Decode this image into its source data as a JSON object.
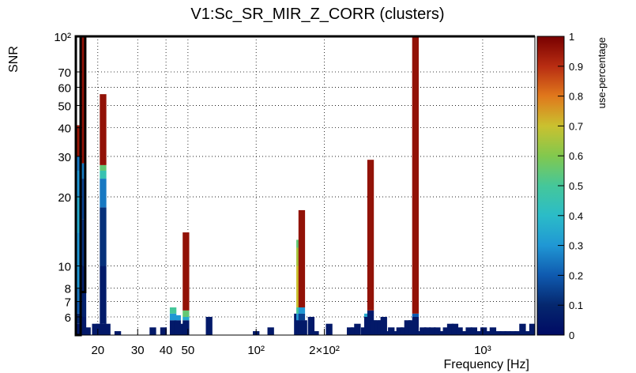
{
  "chart_data": {
    "type": "heatmap",
    "title": "V1:Sc_SR_MIR_Z_CORR (clusters)",
    "xlabel": "Frequency [Hz]",
    "ylabel": "SNR",
    "colorbar_label": "use-percentage",
    "x_scale": "log",
    "y_scale": "log",
    "xlim": [
      16,
      1700
    ],
    "ylim": [
      5,
      100
    ],
    "zlim": [
      0,
      1
    ],
    "grid": true,
    "x_ticks": [
      {
        "value": 20,
        "label": "20"
      },
      {
        "value": 30,
        "label": "30"
      },
      {
        "value": 40,
        "label": "40"
      },
      {
        "value": 50,
        "label": "50"
      },
      {
        "value": 100,
        "label": "10²"
      },
      {
        "value": 200,
        "label": "2×10²"
      },
      {
        "value": 1000,
        "label": "10³"
      }
    ],
    "y_ticks": [
      {
        "value": 6,
        "label": "6"
      },
      {
        "value": 7,
        "label": "7"
      },
      {
        "value": 8,
        "label": "8"
      },
      {
        "value": 10,
        "label": "10"
      },
      {
        "value": 20,
        "label": "20"
      },
      {
        "value": 30,
        "label": "30"
      },
      {
        "value": 40,
        "label": "40"
      },
      {
        "value": 50,
        "label": "50"
      },
      {
        "value": 60,
        "label": "60"
      },
      {
        "value": 70,
        "label": "70"
      },
      {
        "value": 100,
        "label": "10²"
      }
    ],
    "colorbar_ticks": [
      {
        "value": 0,
        "label": "0"
      },
      {
        "value": 0.1,
        "label": "0.1"
      },
      {
        "value": 0.2,
        "label": "0.2"
      },
      {
        "value": 0.3,
        "label": "0.3"
      },
      {
        "value": 0.4,
        "label": "0.4"
      },
      {
        "value": 0.5,
        "label": "0.5"
      },
      {
        "value": 0.6,
        "label": "0.6"
      },
      {
        "value": 0.7,
        "label": "0.7"
      },
      {
        "value": 0.8,
        "label": "0.8"
      },
      {
        "value": 0.9,
        "label": "0.9"
      },
      {
        "value": 1,
        "label": "1"
      }
    ],
    "highlight_boxes": [
      {
        "x": [
          16.0,
          16.8
        ],
        "y": [
          5,
          100
        ]
      },
      {
        "x": [
          16.8,
          17.6
        ],
        "y": [
          7.7,
          100
        ]
      }
    ],
    "columns": [
      {
        "f": 16.4,
        "segs": [
          [
            5,
            5.6,
            0.05
          ],
          [
            5.6,
            6.2,
            0.1
          ],
          [
            6.2,
            7,
            0.2
          ],
          [
            7,
            8,
            0.25
          ],
          [
            8,
            10,
            0.3
          ],
          [
            10,
            14,
            0.3
          ],
          [
            14,
            20,
            0.35
          ],
          [
            20,
            26,
            0.3
          ],
          [
            26,
            30,
            0.25
          ],
          [
            30,
            41,
            0.95
          ]
        ]
      },
      {
        "f": 17.2,
        "segs": [
          [
            5,
            6,
            0.05
          ],
          [
            6,
            10,
            0.08
          ],
          [
            10,
            16,
            0.12
          ],
          [
            16,
            24,
            0.15
          ],
          [
            24,
            28,
            0.25
          ],
          [
            28,
            100,
            0.96
          ]
        ]
      },
      {
        "f": 18.0,
        "segs": [
          [
            5,
            5.4,
            0.05
          ]
        ]
      },
      {
        "f": 19.5,
        "segs": [
          [
            5,
            5.6,
            0.05
          ]
        ]
      },
      {
        "f": 20.3,
        "segs": [
          [
            5,
            5.6,
            0.05
          ]
        ]
      },
      {
        "f": 21.1,
        "segs": [
          [
            5,
            5.6,
            0.05
          ],
          [
            5.6,
            10,
            0.06
          ],
          [
            10,
            18,
            0.12
          ],
          [
            18,
            24,
            0.25
          ],
          [
            24,
            26,
            0.45
          ],
          [
            26,
            27.5,
            0.55
          ],
          [
            27.5,
            56,
            0.96
          ]
        ]
      },
      {
        "f": 22.0,
        "segs": [
          [
            5,
            5.6,
            0.05
          ]
        ]
      },
      {
        "f": 24.5,
        "segs": [
          [
            5,
            5.2,
            0.05
          ]
        ]
      },
      {
        "f": 35.0,
        "segs": [
          [
            5,
            5.4,
            0.05
          ]
        ]
      },
      {
        "f": 39.0,
        "segs": [
          [
            5,
            5.4,
            0.05
          ]
        ]
      },
      {
        "f": 43.0,
        "segs": [
          [
            5,
            5.8,
            0.05
          ],
          [
            5.8,
            6.2,
            0.3
          ],
          [
            6.2,
            6.6,
            0.5
          ]
        ]
      },
      {
        "f": 45.0,
        "segs": [
          [
            5,
            5.8,
            0.05
          ],
          [
            5.8,
            6.1,
            0.3
          ]
        ]
      },
      {
        "f": 47.0,
        "segs": [
          [
            5,
            5.6,
            0.05
          ]
        ]
      },
      {
        "f": 49.0,
        "segs": [
          [
            5,
            5.8,
            0.05
          ],
          [
            5.8,
            6,
            0.35
          ],
          [
            6,
            6.4,
            0.55
          ],
          [
            6.4,
            14,
            0.96
          ]
        ]
      },
      {
        "f": 62.0,
        "segs": [
          [
            5,
            6,
            0.05
          ]
        ]
      },
      {
        "f": 100.0,
        "segs": [
          [
            5,
            5.2,
            0.05
          ]
        ]
      },
      {
        "f": 116.0,
        "segs": [
          [
            5,
            5.4,
            0.05
          ]
        ]
      },
      {
        "f": 152.0,
        "segs": [
          [
            5,
            6.2,
            0.05
          ]
        ]
      },
      {
        "f": 155.5,
        "segs": [
          [
            5,
            5.8,
            0.05
          ],
          [
            5.8,
            6.2,
            0.3
          ],
          [
            6.2,
            6.6,
            0.5
          ],
          [
            6.6,
            10,
            0.7
          ],
          [
            10,
            12,
            0.65
          ],
          [
            12,
            13,
            0.55
          ]
        ]
      },
      {
        "f": 159.0,
        "segs": [
          [
            5,
            5.8,
            0.05
          ],
          [
            5.8,
            6.2,
            0.15
          ],
          [
            6.2,
            6.6,
            0.3
          ],
          [
            6.6,
            17.5,
            0.96
          ]
        ]
      },
      {
        "f": 162.5,
        "segs": [
          [
            5,
            5.8,
            0.05
          ]
        ]
      },
      {
        "f": 175.0,
        "segs": [
          [
            5,
            6,
            0.05
          ]
        ]
      },
      {
        "f": 183.0,
        "segs": [
          [
            5,
            5.2,
            0.05
          ]
        ]
      },
      {
        "f": 210.0,
        "segs": [
          [
            5,
            5.6,
            0.05
          ]
        ]
      },
      {
        "f": 260.0,
        "segs": [
          [
            5,
            5.4,
            0.05
          ]
        ]
      },
      {
        "f": 270.0,
        "segs": [
          [
            5,
            5.4,
            0.05
          ]
        ]
      },
      {
        "f": 280.0,
        "segs": [
          [
            5,
            5.6,
            0.05
          ]
        ]
      },
      {
        "f": 300.0,
        "segs": [
          [
            5,
            5.4,
            0.05
          ]
        ]
      },
      {
        "f": 310.0,
        "segs": [
          [
            5,
            6,
            0.05
          ],
          [
            6,
            6.2,
            0.35
          ]
        ]
      },
      {
        "f": 320.0,
        "segs": [
          [
            5,
            6.4,
            0.05
          ],
          [
            6.4,
            29,
            0.96
          ]
        ]
      },
      {
        "f": 330.0,
        "segs": [
          [
            5,
            5.8,
            0.05
          ]
        ]
      },
      {
        "f": 342.0,
        "segs": [
          [
            5,
            5.8,
            0.05
          ]
        ]
      },
      {
        "f": 354.0,
        "segs": [
          [
            5,
            5.8,
            0.05
          ]
        ]
      },
      {
        "f": 366.0,
        "segs": [
          [
            5,
            6,
            0.05
          ]
        ]
      },
      {
        "f": 378.0,
        "segs": [
          [
            5,
            5.2,
            0.05
          ]
        ]
      },
      {
        "f": 395.0,
        "segs": [
          [
            5,
            5.4,
            0.05
          ]
        ]
      },
      {
        "f": 412.0,
        "segs": [
          [
            5,
            5.2,
            0.05
          ]
        ]
      },
      {
        "f": 430.0,
        "segs": [
          [
            5,
            5.4,
            0.05
          ]
        ]
      },
      {
        "f": 448.0,
        "segs": [
          [
            5,
            5.4,
            0.05
          ]
        ]
      },
      {
        "f": 466.0,
        "segs": [
          [
            5,
            5.8,
            0.05
          ]
        ]
      },
      {
        "f": 486.0,
        "segs": [
          [
            5,
            5.8,
            0.05
          ]
        ]
      },
      {
        "f": 505.0,
        "segs": [
          [
            5,
            6,
            0.05
          ],
          [
            6,
            6.2,
            0.2
          ],
          [
            6.2,
            100,
            0.96
          ]
        ]
      },
      {
        "f": 525.0,
        "segs": [
          [
            5,
            5.2,
            0.05
          ]
        ]
      },
      {
        "f": 545.0,
        "segs": [
          [
            5,
            5.4,
            0.05
          ]
        ]
      },
      {
        "f": 570.0,
        "segs": [
          [
            5,
            5.4,
            0.05
          ]
        ]
      },
      {
        "f": 600.0,
        "segs": [
          [
            5,
            5.4,
            0.05
          ]
        ]
      },
      {
        "f": 630.0,
        "segs": [
          [
            5,
            5.4,
            0.05
          ]
        ]
      },
      {
        "f": 660.0,
        "segs": [
          [
            5,
            5.2,
            0.05
          ]
        ]
      },
      {
        "f": 690.0,
        "segs": [
          [
            5,
            5.4,
            0.05
          ]
        ]
      },
      {
        "f": 720.0,
        "segs": [
          [
            5,
            5.6,
            0.05
          ]
        ]
      },
      {
        "f": 755.0,
        "segs": [
          [
            5,
            5.6,
            0.05
          ]
        ]
      },
      {
        "f": 790.0,
        "segs": [
          [
            5,
            5.4,
            0.05
          ]
        ]
      },
      {
        "f": 830.0,
        "segs": [
          [
            5,
            5.2,
            0.05
          ]
        ]
      },
      {
        "f": 870.0,
        "segs": [
          [
            5,
            5.4,
            0.05
          ]
        ]
      },
      {
        "f": 915.0,
        "segs": [
          [
            5,
            5.4,
            0.05
          ]
        ]
      },
      {
        "f": 960.0,
        "segs": [
          [
            5,
            5.2,
            0.05
          ]
        ]
      },
      {
        "f": 1010.0,
        "segs": [
          [
            5,
            5.4,
            0.05
          ]
        ]
      },
      {
        "f": 1060.0,
        "segs": [
          [
            5,
            5.2,
            0.05
          ]
        ]
      },
      {
        "f": 1110.0,
        "segs": [
          [
            5,
            5.4,
            0.05
          ]
        ]
      },
      {
        "f": 1170.0,
        "segs": [
          [
            5,
            5.2,
            0.05
          ]
        ]
      },
      {
        "f": 1230.0,
        "segs": [
          [
            5,
            5.2,
            0.05
          ]
        ]
      },
      {
        "f": 1290.0,
        "segs": [
          [
            5,
            5.2,
            0.05
          ]
        ]
      },
      {
        "f": 1360.0,
        "segs": [
          [
            5,
            5.2,
            0.05
          ]
        ]
      },
      {
        "f": 1430.0,
        "segs": [
          [
            5,
            5.2,
            0.05
          ]
        ]
      },
      {
        "f": 1500.0,
        "segs": [
          [
            5,
            5.6,
            0.05
          ]
        ]
      },
      {
        "f": 1580.0,
        "segs": [
          [
            5,
            5.2,
            0.05
          ]
        ]
      },
      {
        "f": 1660.0,
        "segs": [
          [
            5,
            5.6,
            0.05
          ]
        ]
      }
    ]
  }
}
